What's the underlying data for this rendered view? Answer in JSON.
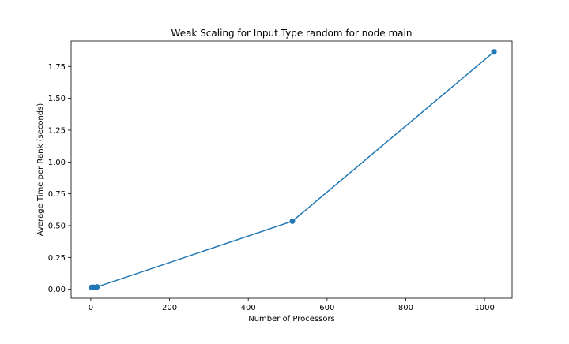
{
  "chart_data": {
    "type": "line",
    "title": "Weak Scaling for Input Type random for node main",
    "xlabel": "Number of Processors",
    "ylabel": "Average Time per Rank (seconds)",
    "xlim": [
      -50,
      1070
    ],
    "ylim": [
      -0.07,
      1.95
    ],
    "xticks": [
      0,
      200,
      400,
      600,
      800,
      1000
    ],
    "xtick_labels": [
      "0",
      "200",
      "400",
      "600",
      "800",
      "1000"
    ],
    "yticks": [
      0.0,
      0.25,
      0.5,
      0.75,
      1.0,
      1.25,
      1.5,
      1.75
    ],
    "ytick_labels": [
      "0.00",
      "0.25",
      "0.50",
      "0.75",
      "1.00",
      "1.25",
      "1.50",
      "1.75"
    ],
    "grid": false,
    "series": [
      {
        "color": "#1f77b4",
        "marker": "circle",
        "x": [
          2,
          4,
          8,
          16,
          512,
          1024
        ],
        "y": [
          0.015,
          0.015,
          0.016,
          0.019,
          0.535,
          1.865
        ]
      }
    ]
  }
}
